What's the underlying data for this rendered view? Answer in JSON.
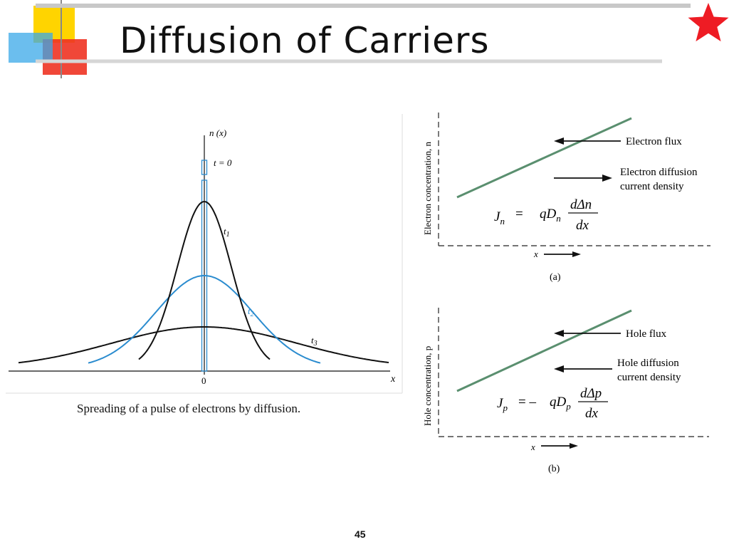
{
  "slide": {
    "title": "Diffusion of Carriers",
    "page_number": "45",
    "colors": {
      "red_star": "#ee1c24",
      "deco_yellow": "#ffd400",
      "deco_red": "#ee3322",
      "deco_blue": "#3aa8e8",
      "line_green": "#5a8f6f",
      "curve_blue": "#2b8ccf"
    }
  },
  "figure_left": {
    "caption": "Spreading of a pulse of electrons by diffusion.",
    "y_axis_label": "n (x)",
    "x_axis_label": "x",
    "origin_label": "0",
    "curve_labels": {
      "t0": "t = 0",
      "t1_base": "t",
      "t1_sub": "1",
      "t2_base": "t",
      "t2_sub": "2",
      "t3_base": "t",
      "t3_sub": "3"
    }
  },
  "figure_a": {
    "y_axis_label": "Electron concentration, n",
    "flux_label": "Electron flux",
    "current_label_line1": "Electron diffusion",
    "current_label_line2": "current density",
    "eq_lhs": "J",
    "eq_lhs_sub": "n",
    "eq_equals": "=",
    "eq_coef": "qD",
    "eq_coef_sub": "n",
    "eq_num": "dΔn",
    "eq_den": "dx",
    "x_label": "x",
    "caption": "(a)"
  },
  "figure_b": {
    "y_axis_label": "Hole concentration, p",
    "flux_label": "Hole flux",
    "current_label_line1": "Hole diffusion",
    "current_label_line2": "current density",
    "eq_lhs": "J",
    "eq_lhs_sub": "p",
    "eq_equals": "= –",
    "eq_coef": "qD",
    "eq_coef_sub": "p",
    "eq_num": "dΔp",
    "eq_den": "dx",
    "x_label": "x",
    "caption": "(b)"
  }
}
